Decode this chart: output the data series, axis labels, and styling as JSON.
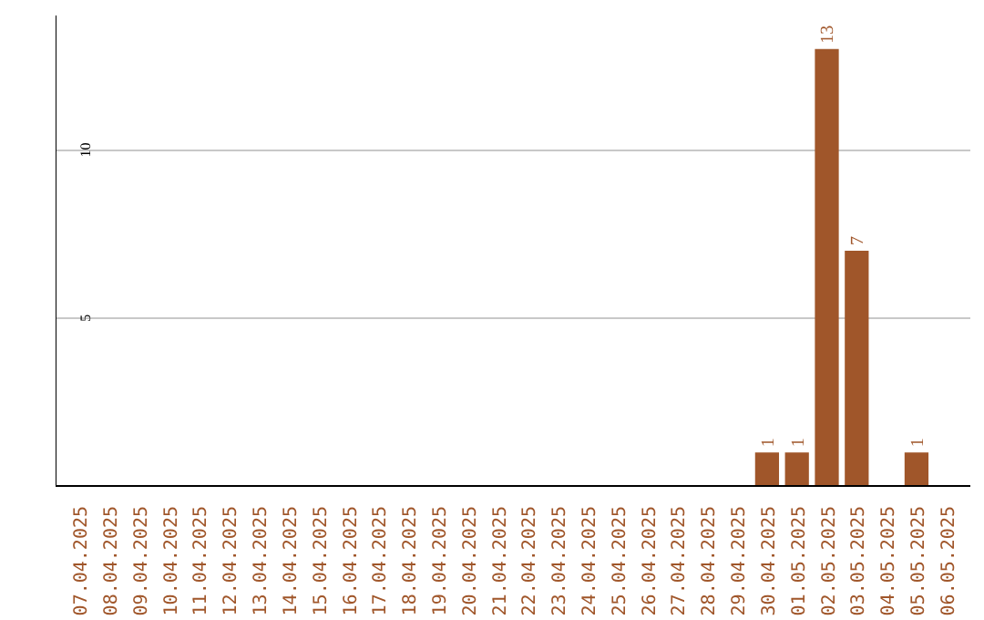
{
  "chart_data": {
    "type": "bar",
    "categories": [
      "07.04.2025",
      "08.04.2025",
      "09.04.2025",
      "10.04.2025",
      "11.04.2025",
      "12.04.2025",
      "13.04.2025",
      "14.04.2025",
      "15.04.2025",
      "16.04.2025",
      "17.04.2025",
      "18.04.2025",
      "19.04.2025",
      "20.04.2025",
      "21.04.2025",
      "22.04.2025",
      "23.04.2025",
      "24.04.2025",
      "25.04.2025",
      "26.04.2025",
      "27.04.2025",
      "28.04.2025",
      "29.04.2025",
      "30.04.2025",
      "01.05.2025",
      "02.05.2025",
      "03.05.2025",
      "04.05.2025",
      "05.05.2025",
      "06.05.2025"
    ],
    "values": [
      0,
      0,
      0,
      0,
      0,
      0,
      0,
      0,
      0,
      0,
      0,
      0,
      0,
      0,
      0,
      0,
      0,
      0,
      0,
      0,
      0,
      0,
      0,
      1,
      1,
      13,
      7,
      0,
      1,
      0
    ],
    "value_labels": [
      null,
      null,
      null,
      null,
      null,
      null,
      null,
      null,
      null,
      null,
      null,
      null,
      null,
      null,
      null,
      null,
      null,
      null,
      null,
      null,
      null,
      null,
      null,
      "1",
      "1",
      "13",
      "7",
      null,
      "1",
      null
    ],
    "color": "#a0562a",
    "ylim": [
      0,
      14
    ],
    "yticks": [
      5,
      10
    ],
    "grid": "y"
  }
}
